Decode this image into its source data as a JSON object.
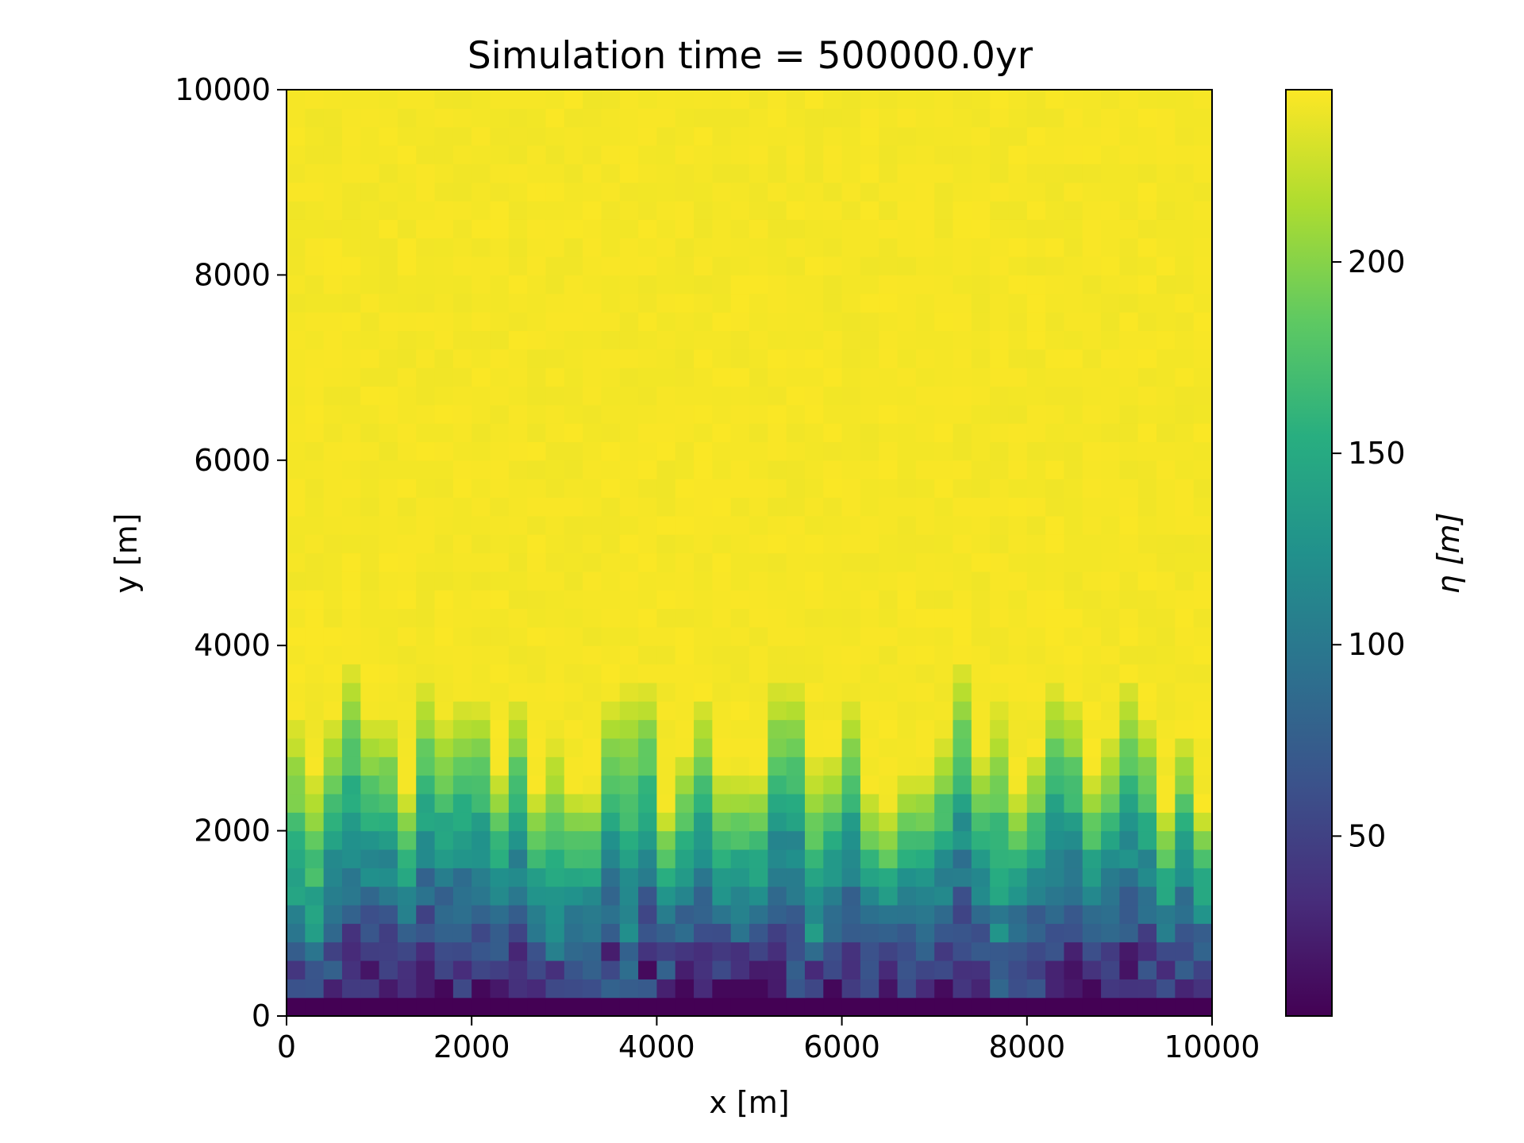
{
  "chart_data": {
    "type": "heatmap",
    "title": "Simulation time = 500000.0yr",
    "xlabel": "x [m]",
    "ylabel": "y [m]",
    "xlim": [
      0,
      10000
    ],
    "ylim": [
      0,
      10000
    ],
    "x_ticks": [
      0,
      2000,
      4000,
      6000,
      8000,
      10000
    ],
    "y_ticks": [
      0,
      2000,
      4000,
      6000,
      8000,
      10000
    ],
    "grid": false,
    "grid_cells": [
      50,
      50
    ],
    "colormap": "viridis",
    "colorbar": {
      "label": "η [m]",
      "range": [
        3,
        245
      ],
      "ticks": [
        50,
        100,
        150,
        200
      ]
    },
    "summary": {
      "plateau_value": 244,
      "outlet_row_value": 3,
      "valley_front_y_range": [
        2000,
        4000
      ]
    }
  }
}
